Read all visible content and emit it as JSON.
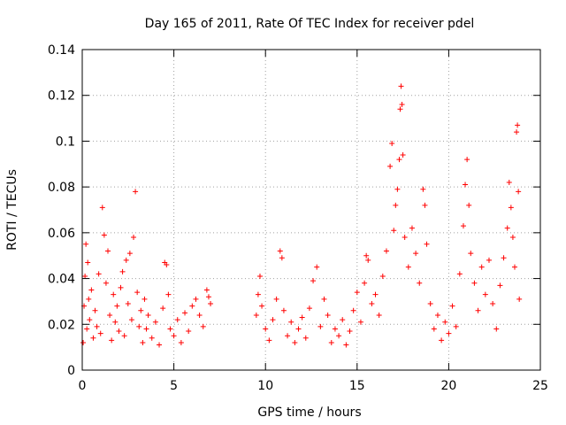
{
  "chart_data": {
    "type": "scatter",
    "title": "Day 165 of 2011, Rate Of TEC Index for receiver pdel",
    "xlabel": "GPS time / hours",
    "ylabel": "ROTI / TECUs",
    "xlim": [
      0,
      25
    ],
    "ylim": [
      0,
      0.14
    ],
    "x_ticks": [
      0,
      5,
      10,
      15,
      20,
      25
    ],
    "y_ticks": [
      0,
      0.02,
      0.04,
      0.06,
      0.08,
      0.1,
      0.12,
      0.14
    ],
    "x_tick_labels": [
      "0",
      "5",
      "10",
      "15",
      "20",
      "25"
    ],
    "y_tick_labels": [
      "0",
      "0.02",
      "0.04",
      "0.06",
      "0.08",
      "0.1",
      "0.12",
      "0.14"
    ],
    "grid": true,
    "marker": "+",
    "marker_color": "#ff0000",
    "series": [
      {
        "name": "ROTI",
        "points": [
          [
            0.05,
            0.012
          ],
          [
            0.1,
            0.028
          ],
          [
            0.15,
            0.041
          ],
          [
            0.2,
            0.055
          ],
          [
            0.25,
            0.018
          ],
          [
            0.3,
            0.047
          ],
          [
            0.35,
            0.031
          ],
          [
            0.4,
            0.022
          ],
          [
            0.5,
            0.035
          ],
          [
            0.6,
            0.014
          ],
          [
            0.7,
            0.026
          ],
          [
            0.8,
            0.019
          ],
          [
            0.9,
            0.042
          ],
          [
            1.0,
            0.016
          ],
          [
            1.1,
            0.071
          ],
          [
            1.2,
            0.059
          ],
          [
            1.3,
            0.038
          ],
          [
            1.4,
            0.052
          ],
          [
            1.5,
            0.024
          ],
          [
            1.6,
            0.013
          ],
          [
            1.7,
            0.033
          ],
          [
            1.8,
            0.021
          ],
          [
            1.9,
            0.028
          ],
          [
            2.0,
            0.017
          ],
          [
            2.1,
            0.036
          ],
          [
            2.2,
            0.043
          ],
          [
            2.3,
            0.015
          ],
          [
            2.4,
            0.048
          ],
          [
            2.5,
            0.029
          ],
          [
            2.6,
            0.051
          ],
          [
            2.7,
            0.022
          ],
          [
            2.8,
            0.058
          ],
          [
            2.9,
            0.078
          ],
          [
            3.0,
            0.034
          ],
          [
            3.1,
            0.019
          ],
          [
            3.2,
            0.026
          ],
          [
            3.3,
            0.012
          ],
          [
            3.4,
            0.031
          ],
          [
            3.5,
            0.018
          ],
          [
            3.6,
            0.024
          ],
          [
            3.8,
            0.014
          ],
          [
            4.0,
            0.021
          ],
          [
            4.2,
            0.011
          ],
          [
            4.4,
            0.027
          ],
          [
            4.5,
            0.047
          ],
          [
            4.6,
            0.046
          ],
          [
            4.7,
            0.033
          ],
          [
            4.8,
            0.018
          ],
          [
            5.0,
            0.015
          ],
          [
            5.2,
            0.022
          ],
          [
            5.4,
            0.012
          ],
          [
            5.6,
            0.025
          ],
          [
            5.8,
            0.017
          ],
          [
            6.0,
            0.028
          ],
          [
            6.2,
            0.031
          ],
          [
            6.4,
            0.024
          ],
          [
            6.6,
            0.019
          ],
          [
            6.8,
            0.035
          ],
          [
            6.9,
            0.032
          ],
          [
            7.0,
            0.029
          ],
          [
            9.5,
            0.024
          ],
          [
            9.6,
            0.033
          ],
          [
            9.7,
            0.041
          ],
          [
            9.8,
            0.028
          ],
          [
            10.0,
            0.018
          ],
          [
            10.2,
            0.013
          ],
          [
            10.4,
            0.022
          ],
          [
            10.6,
            0.031
          ],
          [
            10.8,
            0.052
          ],
          [
            10.9,
            0.049
          ],
          [
            11.0,
            0.026
          ],
          [
            11.2,
            0.015
          ],
          [
            11.4,
            0.021
          ],
          [
            11.6,
            0.012
          ],
          [
            11.8,
            0.018
          ],
          [
            12.0,
            0.023
          ],
          [
            12.2,
            0.014
          ],
          [
            12.4,
            0.027
          ],
          [
            12.6,
            0.039
          ],
          [
            12.8,
            0.045
          ],
          [
            13.0,
            0.019
          ],
          [
            13.2,
            0.031
          ],
          [
            13.4,
            0.024
          ],
          [
            13.6,
            0.012
          ],
          [
            13.8,
            0.018
          ],
          [
            14.0,
            0.015
          ],
          [
            14.2,
            0.022
          ],
          [
            14.4,
            0.011
          ],
          [
            14.6,
            0.017
          ],
          [
            14.8,
            0.026
          ],
          [
            15.0,
            0.034
          ],
          [
            15.2,
            0.021
          ],
          [
            15.4,
            0.038
          ],
          [
            15.5,
            0.05
          ],
          [
            15.6,
            0.048
          ],
          [
            15.8,
            0.029
          ],
          [
            16.0,
            0.033
          ],
          [
            16.2,
            0.024
          ],
          [
            16.4,
            0.041
          ],
          [
            16.6,
            0.052
          ],
          [
            16.8,
            0.089
          ],
          [
            16.9,
            0.099
          ],
          [
            17.0,
            0.061
          ],
          [
            17.1,
            0.072
          ],
          [
            17.2,
            0.079
          ],
          [
            17.3,
            0.092
          ],
          [
            17.35,
            0.114
          ],
          [
            17.4,
            0.124
          ],
          [
            17.45,
            0.116
          ],
          [
            17.5,
            0.094
          ],
          [
            17.6,
            0.058
          ],
          [
            17.8,
            0.045
          ],
          [
            18.0,
            0.062
          ],
          [
            18.2,
            0.051
          ],
          [
            18.4,
            0.038
          ],
          [
            18.6,
            0.079
          ],
          [
            18.7,
            0.072
          ],
          [
            18.8,
            0.055
          ],
          [
            19.0,
            0.029
          ],
          [
            19.2,
            0.018
          ],
          [
            19.4,
            0.024
          ],
          [
            19.6,
            0.013
          ],
          [
            19.8,
            0.021
          ],
          [
            20.0,
            0.016
          ],
          [
            20.2,
            0.028
          ],
          [
            20.4,
            0.019
          ],
          [
            20.6,
            0.042
          ],
          [
            20.8,
            0.063
          ],
          [
            20.9,
            0.081
          ],
          [
            21.0,
            0.092
          ],
          [
            21.1,
            0.072
          ],
          [
            21.2,
            0.051
          ],
          [
            21.4,
            0.038
          ],
          [
            21.6,
            0.026
          ],
          [
            21.8,
            0.045
          ],
          [
            22.0,
            0.033
          ],
          [
            22.2,
            0.048
          ],
          [
            22.4,
            0.029
          ],
          [
            22.6,
            0.018
          ],
          [
            22.8,
            0.037
          ],
          [
            23.0,
            0.049
          ],
          [
            23.2,
            0.062
          ],
          [
            23.3,
            0.082
          ],
          [
            23.4,
            0.071
          ],
          [
            23.5,
            0.058
          ],
          [
            23.6,
            0.045
          ],
          [
            23.7,
            0.104
          ],
          [
            23.75,
            0.107
          ],
          [
            23.8,
            0.078
          ],
          [
            23.85,
            0.031
          ]
        ]
      }
    ]
  }
}
